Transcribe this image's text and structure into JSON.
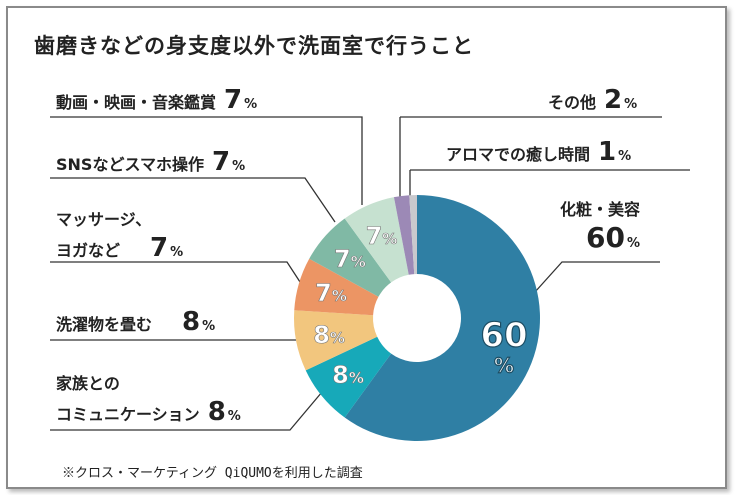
{
  "chart_data": {
    "type": "pie",
    "donut": true,
    "title": "歯磨きなどの身支度以外で洗面室で行うこと",
    "unit": "%",
    "categories": [
      "化粧・美容",
      "家族とのコミュニケーション",
      "洗濯物を畳む",
      "マッサージ、ヨガなど",
      "SNSなどスマホ操作",
      "動画・映画・音楽鑑賞",
      "その他",
      "アロマでの癒し時間"
    ],
    "label_lines": [
      [
        "化粧・美容"
      ],
      [
        "家族との",
        "コミュニケーション"
      ],
      [
        "洗濯物を畳む"
      ],
      [
        "マッサージ、",
        "ヨガなど"
      ],
      [
        "SNSなどスマホ操作"
      ],
      [
        "動画・映画・音楽鑑賞"
      ],
      [
        "その他"
      ],
      [
        "アロマでの癒し時間"
      ]
    ],
    "values": [
      60,
      8,
      8,
      7,
      7,
      7,
      2,
      1
    ],
    "colors": [
      "#2f7fa4",
      "#17a9b9",
      "#f2c67e",
      "#ec9564",
      "#80b9a5",
      "#c6e1d0",
      "#9c89b6",
      "#c9c9cd"
    ],
    "slice_labels": [
      "60",
      "8",
      "8",
      "7",
      "7",
      "7",
      "",
      ""
    ],
    "start": "top",
    "direction": "clockwise",
    "legend": "callout labels with leader lines"
  },
  "footnote": "※クロス・マーケティング QiQUMOを利用した調査"
}
